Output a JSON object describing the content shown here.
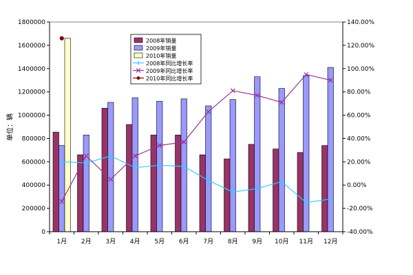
{
  "chart_data": {
    "type": "bar",
    "categories": [
      "1月",
      "2月",
      "3月",
      "4月",
      "5月",
      "6月",
      "7月",
      "8月",
      "9月",
      "10月",
      "11月",
      "12月"
    ],
    "ylabel": "单位：辆",
    "ylim": [
      0,
      1800000
    ],
    "y_ticks": [
      "0",
      "200000",
      "400000",
      "600000",
      "800000",
      "1000000",
      "1200000",
      "1400000",
      "1600000",
      "1800000"
    ],
    "y2lim": [
      -40,
      140
    ],
    "y2_ticks": [
      "-40.00%",
      "-20.00%",
      "0.00%",
      "20.00%",
      "40.00%",
      "60.00%",
      "80.00%",
      "100.00%",
      "120.00%",
      "140.00%"
    ],
    "legend_position": "top-center",
    "grid": false,
    "bar_series": [
      {
        "name": "2008年销量",
        "color": "#993366",
        "values": [
          855000,
          660000,
          1060000,
          920000,
          830000,
          830000,
          660000,
          625000,
          750000,
          710000,
          680000,
          740000
        ]
      },
      {
        "name": "2009年销量",
        "color": "#9999ff",
        "values": [
          740000,
          830000,
          1110000,
          1150000,
          1120000,
          1140000,
          1080000,
          1135000,
          1330000,
          1230000,
          1340000,
          1410000
        ]
      },
      {
        "name": "2010年销量",
        "color": "#ffffcc",
        "values": [
          1660000,
          null,
          null,
          null,
          null,
          null,
          null,
          null,
          null,
          null,
          null,
          null
        ]
      }
    ],
    "line_series": [
      {
        "name": "2008年同比增长率",
        "color": "#33ccff",
        "marker": "cross",
        "values": [
          20,
          19,
          25,
          15,
          17,
          16,
          4,
          -6,
          -3,
          3,
          -15,
          -12
        ]
      },
      {
        "name": "2009年同比增长率",
        "color": "#993399",
        "marker": "x",
        "values": [
          -14,
          25,
          5,
          25,
          34,
          37,
          63,
          81,
          77,
          71,
          95,
          90
        ]
      },
      {
        "name": "2010年同比增长率",
        "color": "#800000",
        "marker": "dot",
        "values": [
          126,
          null,
          null,
          null,
          null,
          null,
          null,
          null,
          null,
          null,
          null,
          null
        ]
      }
    ]
  }
}
